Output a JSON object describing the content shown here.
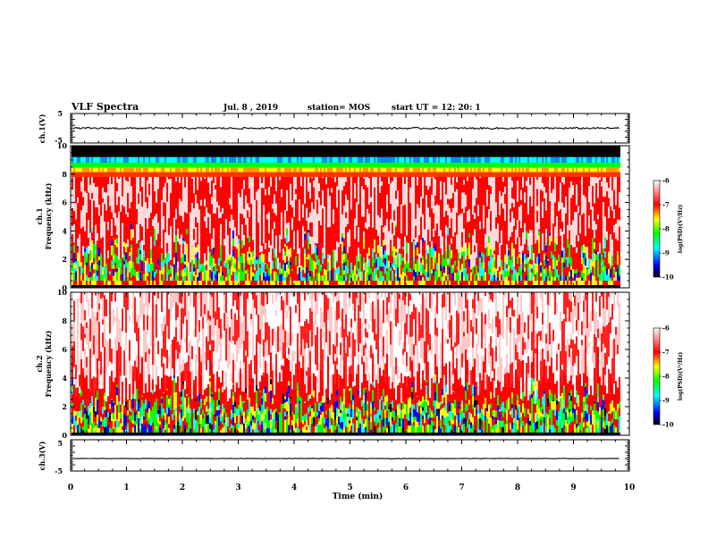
{
  "header": {
    "title": "VLF Spectra",
    "date": "Jul. 8 , 2019",
    "station": "station= MOS",
    "start": "start UT = 12: 20: 1"
  },
  "chart_data": [
    {
      "type": "line",
      "name": "ch1-voltage",
      "ylabel": "ch.1(V)",
      "ylim": [
        -5,
        5
      ],
      "yticks": [
        "5",
        "-5"
      ],
      "baseline": 0
    },
    {
      "type": "heatmap",
      "name": "ch1-spectrogram",
      "ylabel": "ch.1\nFrequency (kHz)",
      "ylim": [
        0,
        10
      ],
      "yticks": [
        "0",
        "2",
        "4",
        "6",
        "8",
        "10"
      ],
      "bands_khz": {
        "black_top": [
          9.2,
          10
        ],
        "blue_green_band": [
          8.0,
          9.2
        ],
        "red_band": [
          2.5,
          8.0
        ],
        "mixed_lower": [
          0.2,
          2.5
        ]
      }
    },
    {
      "type": "heatmap",
      "name": "ch2-spectrogram",
      "ylabel": "ch.2\nFrequency (kHz)",
      "ylim": [
        0,
        10
      ],
      "yticks": [
        "0",
        "2",
        "4",
        "6",
        "8",
        "10"
      ],
      "bands_khz": {
        "white_red_upper": [
          3.5,
          10
        ],
        "mixed_lower": [
          0.2,
          3.5
        ]
      }
    },
    {
      "type": "line",
      "name": "ch3-voltage",
      "ylabel": "ch.3(V)",
      "ylim": [
        -5,
        5
      ],
      "yticks": [
        "5",
        "-5"
      ],
      "baseline": -1
    }
  ],
  "xaxis": {
    "label": "Time (min)",
    "xlim": [
      0,
      10
    ],
    "ticks": [
      "0",
      "1",
      "2",
      "3",
      "4",
      "5",
      "6",
      "7",
      "8",
      "9",
      "10"
    ],
    "data_end": 9.83
  },
  "colorbar": {
    "label": "log(PSD)(V²/Hz)",
    "ticks": [
      "-6",
      "-7",
      "-8",
      "-9",
      "-10"
    ],
    "range": [
      -10,
      -6
    ],
    "colors": [
      "#000000",
      "#0000ff",
      "#00ffff",
      "#00ff00",
      "#ffff00",
      "#ff0000",
      "#ffffff"
    ]
  }
}
